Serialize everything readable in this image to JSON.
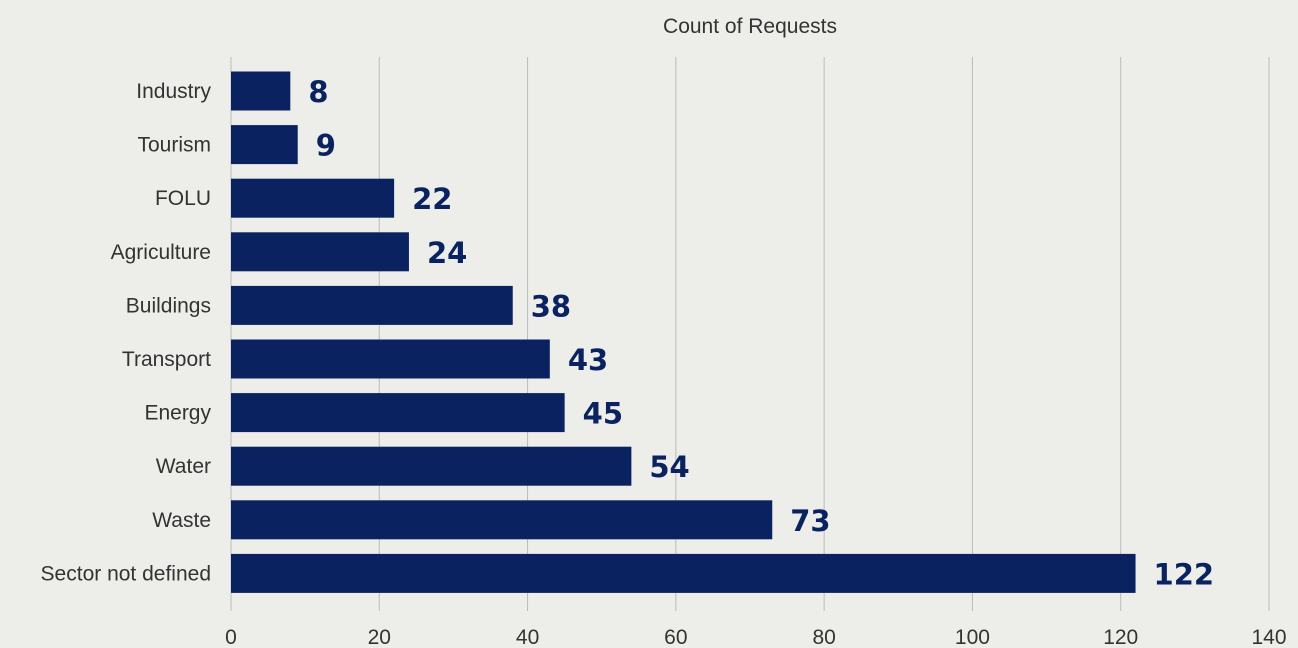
{
  "chart_data": {
    "type": "bar",
    "orientation": "horizontal",
    "title": "",
    "xlabel": "Count of Requests",
    "ylabel": "",
    "categories": [
      "Industry",
      "Tourism",
      "FOLU",
      "Agriculture",
      "Buildings",
      "Transport",
      "Energy",
      "Water",
      "Waste",
      "Sector not defined"
    ],
    "values": [
      8,
      9,
      22,
      24,
      38,
      43,
      45,
      54,
      73,
      122
    ],
    "data_labels": [
      "8",
      "9",
      "22",
      "24",
      "38",
      "43",
      "45",
      "54",
      "73",
      "122"
    ],
    "xlim": [
      0,
      140
    ],
    "x_ticks": [
      0,
      20,
      40,
      60,
      80,
      100,
      120,
      140
    ],
    "x_tick_labels": [
      "0",
      "20",
      "40",
      "60",
      "80",
      "100",
      "120",
      "140"
    ],
    "grid": "vertical",
    "legend": "none",
    "axis_position": "top",
    "colors": {
      "bar": "#0a2360",
      "data_label": "#0a2360",
      "grid": "#bbbbbb",
      "background": "#ededea",
      "text": "#333333"
    }
  }
}
